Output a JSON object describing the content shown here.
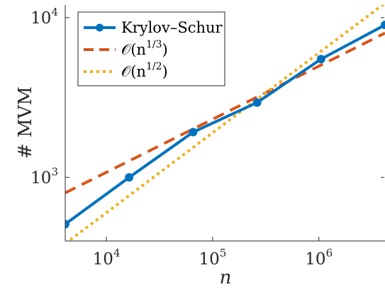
{
  "chart_data": {
    "type": "line",
    "xscale": "log",
    "yscale": "log",
    "xlim": [
      4096,
      4194304
    ],
    "ylim": [
      400,
      12000
    ],
    "xlabel": "n",
    "ylabel": "# MVM",
    "x_ticks": [
      {
        "value": 10000,
        "base": "10",
        "exp": "4"
      },
      {
        "value": 100000,
        "base": "10",
        "exp": "5"
      },
      {
        "value": 1000000,
        "base": "10",
        "exp": "6"
      }
    ],
    "y_ticks": [
      {
        "value": 1000,
        "base": "10",
        "exp": "3"
      },
      {
        "value": 10000,
        "base": "10",
        "exp": "4"
      }
    ],
    "grid": false,
    "legend_position": "top-left",
    "series": [
      {
        "name": "Krylov–Schur",
        "color": "#0072BD",
        "style": "solid",
        "marker": "circle",
        "x": [
          4096,
          16384,
          65536,
          262144,
          1048576,
          4194304
        ],
        "y": [
          510,
          1000,
          1920,
          2940,
          5500,
          9000
        ]
      },
      {
        "name": "𝒪(n^{1/3})",
        "label_parts": {
          "main": "𝒪(n",
          "exp": "1/3",
          "close": ")"
        },
        "color": "#D95319",
        "style": "dashed",
        "marker": "none",
        "x": [
          4096,
          4194304
        ],
        "y": [
          800,
          8000
        ]
      },
      {
        "name": "𝒪(n^{1/2})",
        "label_parts": {
          "main": "𝒪(n",
          "exp": "1/2",
          "close": ")"
        },
        "color": "#EDB120",
        "style": "dotted",
        "marker": "none",
        "x": [
          4096,
          4194304
        ],
        "y": [
          385,
          12320
        ]
      }
    ]
  }
}
